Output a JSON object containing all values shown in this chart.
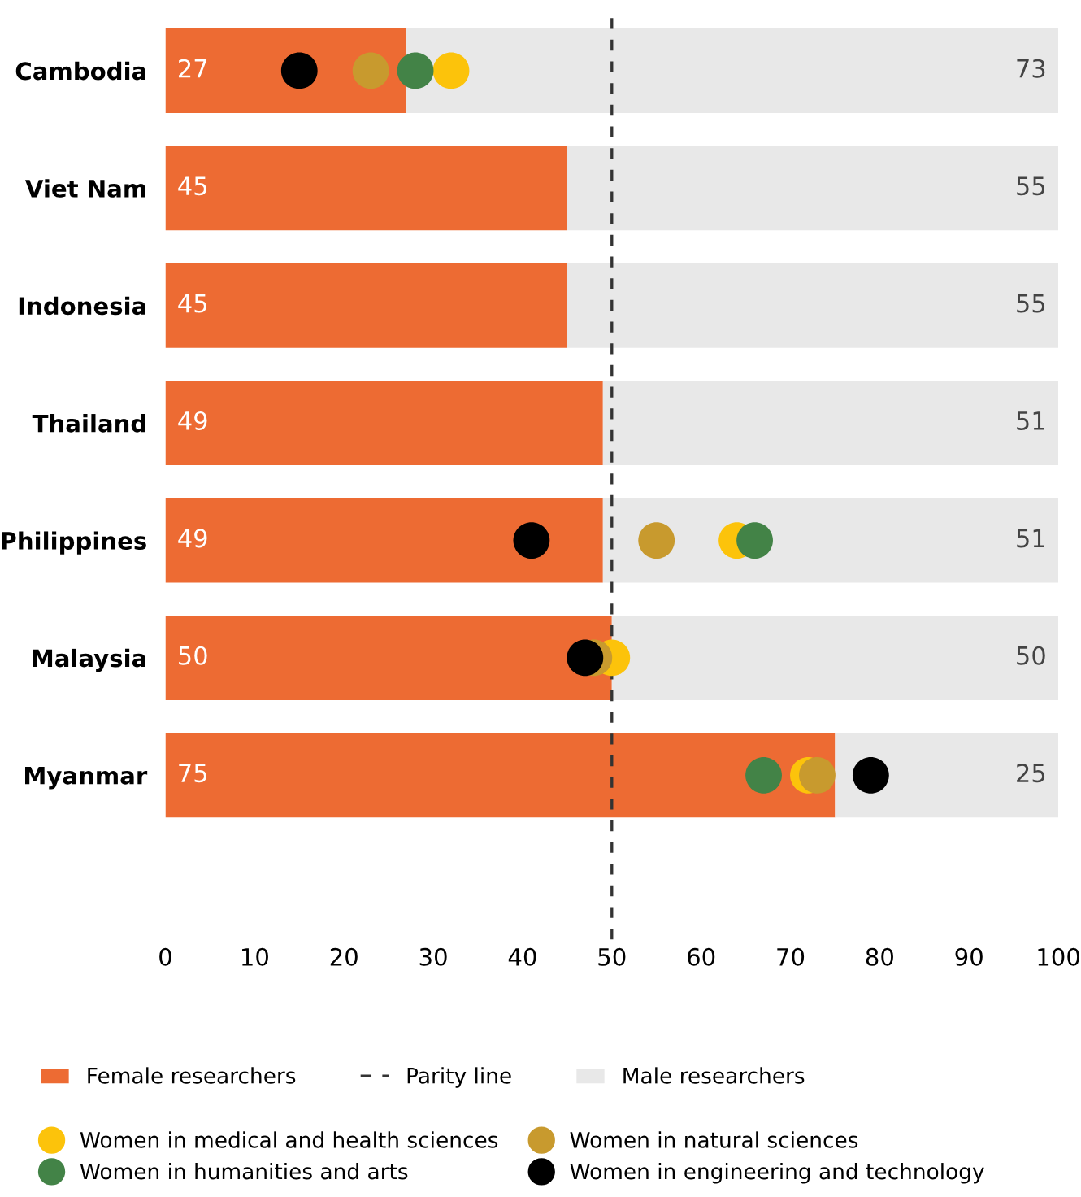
{
  "chart_data": {
    "type": "bar",
    "orientation": "horizontal",
    "stacked": true,
    "categories": [
      "Cambodia",
      "Viet Nam",
      "Indonesia",
      "Thailand",
      "Philippines",
      "Malaysia",
      "Myanmar"
    ],
    "series": [
      {
        "name": "Female researchers",
        "color": "#ed6b33",
        "values": [
          27,
          45,
          45,
          49,
          49,
          50,
          75
        ],
        "value_labels": [
          "27",
          "45",
          "45",
          "49",
          "49",
          "50",
          "75"
        ]
      },
      {
        "name": "Male researchers",
        "color": "#e8e8e8",
        "values": [
          73,
          55,
          55,
          51,
          51,
          50,
          25
        ],
        "value_labels": [
          "73",
          "55",
          "55",
          "51",
          "51",
          "50",
          "25"
        ]
      },
      {
        "name": "Women in medical and health sciences",
        "type": "scatter",
        "color": "#fcc30b",
        "values": [
          32,
          null,
          null,
          null,
          64,
          50,
          72
        ]
      },
      {
        "name": "Women in natural sciences",
        "type": "scatter",
        "color": "#c89a2e",
        "values": [
          23,
          null,
          null,
          null,
          55,
          48,
          73
        ]
      },
      {
        "name": "Women in humanities and arts",
        "type": "scatter",
        "color": "#438347",
        "values": [
          28,
          null,
          null,
          null,
          66,
          null,
          67
        ]
      },
      {
        "name": "Women in engineering and technology",
        "type": "scatter",
        "color": "#000000",
        "values": [
          15,
          null,
          null,
          null,
          41,
          47,
          79
        ]
      }
    ],
    "xlim": [
      0,
      100
    ],
    "xticks": [
      0,
      10,
      20,
      30,
      40,
      50,
      60,
      70,
      80,
      90,
      100
    ],
    "ref_lines": [
      {
        "axis": "x",
        "value": 50,
        "label": "Parity line",
        "color": "#333333",
        "line_style": "dashed"
      }
    ],
    "marker": "circle",
    "legend": "bottom",
    "grid": false
  }
}
